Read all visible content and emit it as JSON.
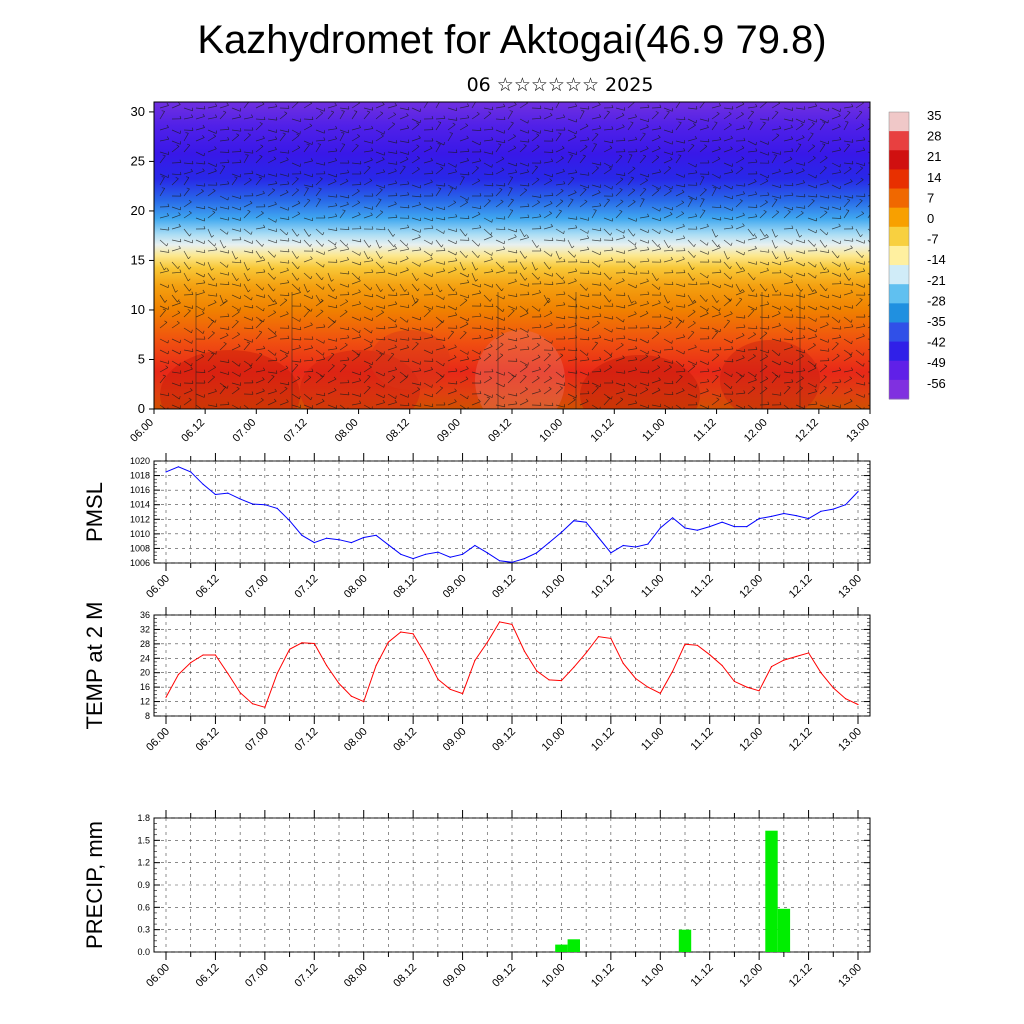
{
  "title": "Kazhydromet for Aktogai(46.9 79.8)",
  "subtitle": "06 ☆☆☆☆☆☆ 2025",
  "chart_data": [
    {
      "type": "heatmap",
      "xlabel": "",
      "ylabel": "",
      "xticks": [
        "06.00",
        "06.12",
        "07.00",
        "07.12",
        "08.00",
        "08.12",
        "09.00",
        "09.12",
        "10.00",
        "10.12",
        "11.00",
        "11.12",
        "12.00",
        "12.12",
        "13.00"
      ],
      "ylim": [
        0,
        31
      ],
      "yticks": [
        0,
        5,
        10,
        15,
        20,
        25,
        30
      ],
      "colorbar_ticks": [
        35,
        28,
        21,
        14,
        7,
        0,
        -7,
        -14,
        -21,
        -28,
        -35,
        -42,
        -49,
        -56
      ],
      "colorbar_colors": [
        "#f0c8c8",
        "#e84040",
        "#d01010",
        "#e83000",
        "#f06800",
        "#f8a000",
        "#f8d040",
        "#fff0a0",
        "#d0ecf8",
        "#60c0f0",
        "#2090e0",
        "#3050e8",
        "#3020e8",
        "#6020e8",
        "#8030e0"
      ],
      "description_layers": [
        "temperature shading",
        "wind barbs",
        "contour lines"
      ]
    },
    {
      "type": "line",
      "ylabel": "PMSL",
      "color": "#0000ff",
      "ylim": [
        1006,
        1020
      ],
      "yticks": [
        1006,
        1008,
        1010,
        1012,
        1014,
        1016,
        1018,
        1020
      ],
      "xticks": [
        "06.00",
        "06.12",
        "07.00",
        "07.12",
        "08.00",
        "08.12",
        "09.00",
        "09.12",
        "10.00",
        "10.12",
        "11.00",
        "11.12",
        "12.00",
        "12.12",
        "13.00"
      ],
      "x_hours": [
        0,
        3,
        6,
        9,
        12,
        15,
        18,
        21,
        24,
        27,
        30,
        33,
        36,
        39,
        42,
        45,
        48,
        51,
        54,
        57,
        60,
        63,
        66,
        69,
        72,
        75,
        78,
        81,
        84,
        87,
        90,
        93,
        96,
        99,
        102,
        105,
        108,
        111,
        114,
        117,
        120,
        123,
        126,
        129,
        132,
        135,
        138,
        141,
        144,
        147,
        150,
        153,
        156,
        159,
        162,
        165,
        168
      ],
      "values": [
        1018.5,
        1019.2,
        1018.5,
        1016.8,
        1015.4,
        1015.6,
        1014.8,
        1014.1,
        1014.0,
        1013.5,
        1011.8,
        1009.8,
        1008.8,
        1009.4,
        1009.2,
        1008.8,
        1009.5,
        1009.8,
        1008.5,
        1007.2,
        1006.6,
        1007.2,
        1007.5,
        1006.8,
        1007.2,
        1008.4,
        1007.4,
        1006.3,
        1006.1,
        1006.6,
        1007.4,
        1008.8,
        1010.2,
        1011.8,
        1011.6,
        1009.5,
        1007.4,
        1008.4,
        1008.2,
        1008.6,
        1010.8,
        1012.2,
        1010.8,
        1010.5,
        1011.0,
        1011.6,
        1011.0,
        1011.0,
        1012.1,
        1012.4,
        1012.8,
        1012.5,
        1012.1,
        1013.1,
        1013.4,
        1014.0,
        1015.8
      ]
    },
    {
      "type": "line",
      "ylabel": "TEMP at 2 M",
      "color": "#ff0000",
      "ylim": [
        8,
        36
      ],
      "yticks": [
        8,
        12,
        16,
        20,
        24,
        28,
        32,
        36
      ],
      "xticks": [
        "06.00",
        "06.12",
        "07.00",
        "07.12",
        "08.00",
        "08.12",
        "09.00",
        "09.12",
        "10.00",
        "10.12",
        "11.00",
        "11.12",
        "12.00",
        "12.12",
        "13.00"
      ],
      "x_hours": [
        0,
        3,
        6,
        9,
        12,
        15,
        18,
        21,
        24,
        27,
        30,
        33,
        36,
        39,
        42,
        45,
        48,
        51,
        54,
        57,
        60,
        63,
        66,
        69,
        72,
        75,
        78,
        81,
        84,
        87,
        90,
        93,
        96,
        99,
        102,
        105,
        108,
        111,
        114,
        117,
        120,
        123,
        126,
        129,
        132,
        135,
        138,
        141,
        144,
        147,
        150,
        153,
        156,
        159,
        162,
        165,
        168
      ],
      "values": [
        13.2,
        19.5,
        22.8,
        24.9,
        24.9,
        19.8,
        14.5,
        11.4,
        10.4,
        19.8,
        26.5,
        28.3,
        28.1,
        22.0,
        17.0,
        13.5,
        12.0,
        22.0,
        28.5,
        31.3,
        30.8,
        25.0,
        18.2,
        15.4,
        14.2,
        23.4,
        28.4,
        34.1,
        33.4,
        26.0,
        20.5,
        18.0,
        17.8,
        21.5,
        25.5,
        30.0,
        29.5,
        22.6,
        18.4,
        16.0,
        14.3,
        20.4,
        27.9,
        27.6,
        25.0,
        22.0,
        17.6,
        16.0,
        15.0,
        21.7,
        23.5,
        24.5,
        25.5,
        20.0,
        15.8,
        12.8,
        11.2
      ]
    },
    {
      "type": "bar",
      "ylabel": "PRECIP, mm",
      "color": "#00ee00",
      "ylim": [
        0,
        1.8
      ],
      "yticks": [
        0.0,
        0.3,
        0.6,
        0.9,
        1.2,
        1.5,
        1.8
      ],
      "ytick_labels": [
        "0.0",
        "0.3",
        "0.6",
        "0.9",
        "1.2",
        "1.5",
        "1.8"
      ],
      "xticks": [
        "06.00",
        "06.12",
        "07.00",
        "07.12",
        "08.00",
        "08.12",
        "09.00",
        "09.12",
        "10.00",
        "10.12",
        "11.00",
        "11.12",
        "12.00",
        "12.12",
        "13.00"
      ],
      "bars": [
        {
          "x_hours": 96,
          "value": 0.1
        },
        {
          "x_hours": 99,
          "value": 0.17
        },
        {
          "x_hours": 126,
          "value": 0.3
        },
        {
          "x_hours": 147,
          "value": 1.63
        },
        {
          "x_hours": 150,
          "value": 0.58
        }
      ]
    }
  ]
}
